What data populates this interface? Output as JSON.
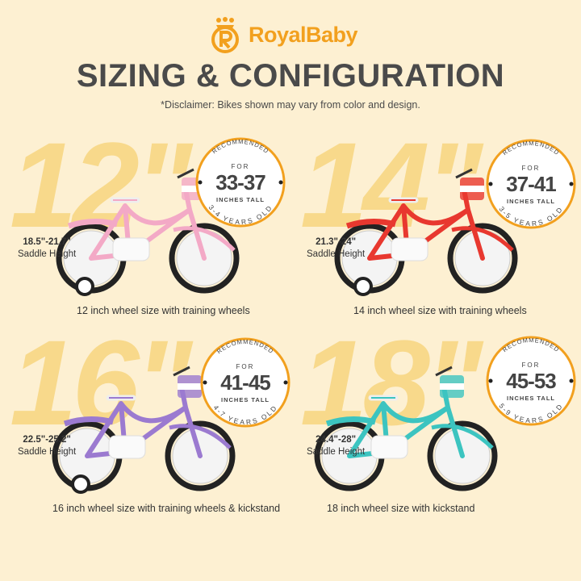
{
  "brand": {
    "name": "RoyalBaby",
    "color": "#f2a01e",
    "logo_icon": "crowned-r-logo-icon"
  },
  "title": "SIZING & CONFIGURATION",
  "disclaimer": "*Disclaimer: Bikes shown may vary from color and design.",
  "colors": {
    "background": "#fdf0d2",
    "big_number": "#f8d98b",
    "badge_ring": "#f2a01e",
    "text": "#4a4a4a"
  },
  "sizes": [
    {
      "size": "12\"",
      "saddle_range": "18.5\"-21.7\"",
      "saddle_label": "Saddle Height",
      "badge_top": "RECOMMENDED",
      "badge_for": "FOR",
      "height_range": "33-37",
      "height_unit": "INCHES TALL",
      "ages": "3-4 YEARS OLD",
      "caption": "12 inch wheel size with training wheels",
      "bike_color": "#f3a9c6"
    },
    {
      "size": "14\"",
      "saddle_range": "21.3\"-24\"",
      "saddle_label": "Saddle Height",
      "badge_top": "RECOMMENDED",
      "badge_for": "FOR",
      "height_range": "37-41",
      "height_unit": "INCHES TALL",
      "ages": "3-5 YEARS OLD",
      "caption": "14 inch wheel size with training wheels",
      "bike_color": "#e8382f"
    },
    {
      "size": "16\"",
      "saddle_range": "22.5\"-25.2\"",
      "saddle_label": "Saddle Height",
      "badge_top": "RECOMMENDED",
      "badge_for": "FOR",
      "height_range": "41-45",
      "height_unit": "INCHES TALL",
      "ages": "4-7 YEARS OLD",
      "caption": "16 inch wheel size with training wheels & kickstand",
      "bike_color": "#9b7ad0"
    },
    {
      "size": "18\"",
      "saddle_range": "24.4\"-28\"",
      "saddle_label": "Saddle Height",
      "badge_top": "RECOMMENDED",
      "badge_for": "FOR",
      "height_range": "45-53",
      "height_unit": "INCHES TALL",
      "ages": "5-9 YEARS OLD",
      "caption": "18 inch wheel size with kickstand",
      "bike_color": "#3cc4c0"
    }
  ]
}
